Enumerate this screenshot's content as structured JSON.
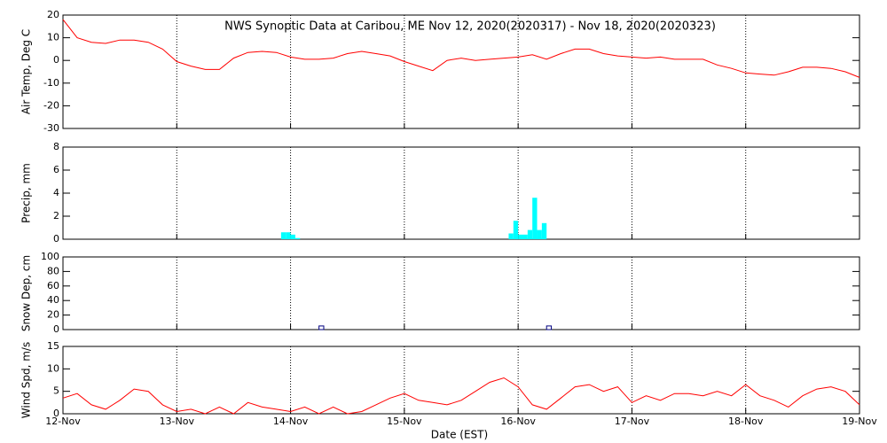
{
  "title": "NWS Synoptic Data at Caribou, ME    Nov 12, 2020(2020317) - Nov 18, 2020(2020323)",
  "xaxis": {
    "label": "Date (EST)",
    "xlim": [
      0,
      168
    ],
    "xticks": [
      {
        "value": 0,
        "label": "12-Nov"
      },
      {
        "value": 24,
        "label": "13-Nov"
      },
      {
        "value": 48,
        "label": "14-Nov"
      },
      {
        "value": 72,
        "label": "15-Nov"
      },
      {
        "value": 96,
        "label": "16-Nov"
      },
      {
        "value": 120,
        "label": "17-Nov"
      },
      {
        "value": 144,
        "label": "18-Nov"
      },
      {
        "value": 168,
        "label": "19-Nov"
      }
    ],
    "grid": true
  },
  "chart_data": [
    {
      "type": "line",
      "ylabel": "Air Temp, Deg C",
      "ylim": [
        -30,
        20
      ],
      "yticks": [
        -30,
        -20,
        -10,
        0,
        10,
        20
      ],
      "color": "#ff0000",
      "x": [
        0,
        3,
        6,
        9,
        12,
        15,
        18,
        21,
        24,
        27,
        30,
        33,
        36,
        39,
        42,
        45,
        48,
        51,
        54,
        57,
        60,
        63,
        66,
        69,
        72,
        75,
        78,
        81,
        84,
        87,
        90,
        93,
        96,
        99,
        102,
        105,
        108,
        111,
        114,
        117,
        120,
        123,
        126,
        129,
        132,
        135,
        138,
        141,
        144,
        147,
        150,
        153,
        156,
        159,
        162,
        165,
        168
      ],
      "values": [
        18,
        10,
        8,
        7.5,
        9,
        9,
        8,
        5,
        -0.5,
        -2.5,
        -4,
        -4,
        1,
        3.5,
        4,
        3.5,
        1.5,
        0.5,
        0.5,
        1,
        3,
        4,
        3,
        2,
        -0.5,
        -2.5,
        -4.5,
        0,
        1,
        0,
        0.5,
        1,
        1.5,
        2.5,
        0.5,
        3,
        5,
        5,
        3,
        2,
        1.5,
        1,
        1.5,
        0.5,
        0.5,
        0.5,
        -2,
        -3.5,
        -5.5,
        -6,
        -6.5,
        -5,
        -3,
        -3,
        -3.5,
        -5,
        -7.5
      ]
    },
    {
      "type": "bar",
      "ylabel": "Precip, mm",
      "ylim": [
        0,
        8
      ],
      "yticks": [
        0,
        2,
        4,
        6,
        8
      ],
      "color": "#00ffff",
      "filled": true,
      "x": [
        46,
        47,
        48,
        49,
        94,
        95,
        96,
        97,
        98,
        99,
        100,
        101
      ],
      "values": [
        0.6,
        0.6,
        0.4,
        0.1,
        0.5,
        1.6,
        0.4,
        0.4,
        0.8,
        3.6,
        0.8,
        1.4
      ]
    },
    {
      "type": "bar",
      "ylabel": "Snow Dep, cm",
      "ylim": [
        0,
        100
      ],
      "yticks": [
        0,
        20,
        40,
        60,
        80,
        100
      ],
      "color": "#000080",
      "filled": false,
      "x": [
        54,
        102
      ],
      "values": [
        5,
        5
      ]
    },
    {
      "type": "line",
      "ylabel": "Wind Spd, m/s",
      "ylim": [
        0,
        15
      ],
      "yticks": [
        0,
        5,
        10,
        15
      ],
      "color": "#ff0000",
      "x": [
        0,
        3,
        6,
        9,
        12,
        15,
        18,
        21,
        24,
        27,
        30,
        33,
        36,
        39,
        42,
        45,
        48,
        51,
        54,
        57,
        60,
        63,
        66,
        69,
        72,
        75,
        78,
        81,
        84,
        87,
        90,
        93,
        96,
        99,
        102,
        105,
        108,
        111,
        114,
        117,
        120,
        123,
        126,
        129,
        132,
        135,
        138,
        141,
        144,
        147,
        150,
        153,
        156,
        159,
        162,
        165,
        168
      ],
      "values": [
        3.5,
        4.5,
        2,
        1,
        3,
        5.5,
        5,
        2,
        0.5,
        1,
        0,
        1.5,
        0,
        2.5,
        1.5,
        1,
        0.5,
        1.5,
        0,
        1.5,
        0,
        0.5,
        2,
        3.5,
        4.5,
        3,
        2.5,
        2,
        3,
        5,
        7,
        8,
        6,
        2,
        1,
        3.5,
        6,
        6.5,
        5,
        6,
        2.5,
        4,
        3,
        4.5,
        4.5,
        4,
        5,
        4,
        6.5,
        4,
        3,
        1.5,
        4,
        5.5,
        6,
        5,
        2
      ]
    }
  ]
}
